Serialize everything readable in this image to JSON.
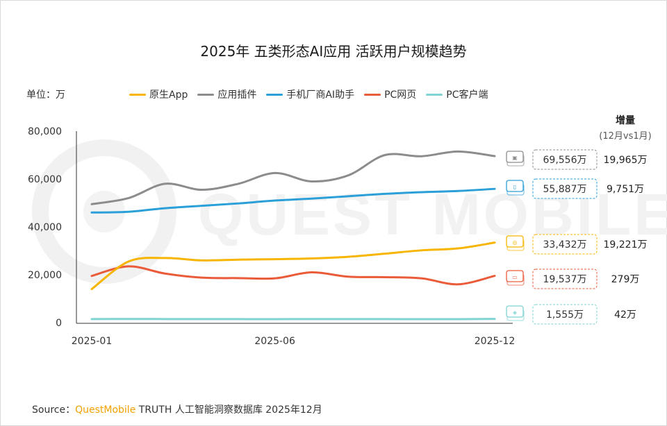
{
  "title": "2025年 五类形态AI应用 活跃用户规模趋势",
  "unit_label": "单位：万",
  "increase_header": {
    "title": "增量",
    "subtitle": "(12月vs1月)"
  },
  "source": {
    "prefix": "Source：",
    "brand": "QuestMobile",
    "rest": " TRUTH 人工智能洞察数据库 2025年12月"
  },
  "watermark": "QUEST MOBILE",
  "chart_data": {
    "type": "line",
    "x": [
      "2025-01",
      "2025-02",
      "2025-03",
      "2025-04",
      "2025-05",
      "2025-06",
      "2025-07",
      "2025-08",
      "2025-09",
      "2025-10",
      "2025-11",
      "2025-12"
    ],
    "x_tick_labels": [
      "2025-01",
      "2025-06",
      "2025-12"
    ],
    "y_tick_labels": [
      "80,000",
      "60,000",
      "40,000",
      "20,000",
      "0"
    ],
    "ylim": [
      0,
      80000
    ],
    "grid": false,
    "legend_position": "top",
    "series": [
      {
        "name": "原生App",
        "color": "#f7b500",
        "values": [
          14000,
          25500,
          27000,
          26000,
          26300,
          26500,
          26800,
          27500,
          28800,
          30200,
          31000,
          33432
        ],
        "end_label": "33,432万",
        "increase": "19,221万",
        "icon": "app-icon"
      },
      {
        "name": "应用插件",
        "color": "#8c8c8c",
        "values": [
          49500,
          52000,
          58000,
          55500,
          58000,
          62500,
          59000,
          61500,
          70000,
          69500,
          71500,
          69556
        ],
        "end_label": "69,556万",
        "increase": "19,965万",
        "icon": "ai-chip-icon"
      },
      {
        "name": "手机厂商AI助手",
        "color": "#2a9fd8",
        "values": [
          46000,
          46300,
          47800,
          48800,
          49800,
          51000,
          51800,
          52800,
          53800,
          54500,
          55000,
          55887
        ],
        "end_label": "55,887万",
        "increase": "9,751万",
        "icon": "phone-icon"
      },
      {
        "name": "PC网页",
        "color": "#ea5b3a",
        "values": [
          19500,
          23500,
          20500,
          18800,
          18600,
          18500,
          21000,
          19200,
          19000,
          18500,
          16000,
          19537
        ],
        "end_label": "19,537万",
        "increase": "279万",
        "icon": "monitor-icon"
      },
      {
        "name": "PC客户端",
        "color": "#7fd3d3",
        "values": [
          1500,
          1520,
          1500,
          1480,
          1470,
          1450,
          1500,
          1480,
          1470,
          1460,
          1450,
          1555
        ],
        "end_label": "1,555万",
        "increase": "42万",
        "icon": "client-icon"
      }
    ]
  }
}
